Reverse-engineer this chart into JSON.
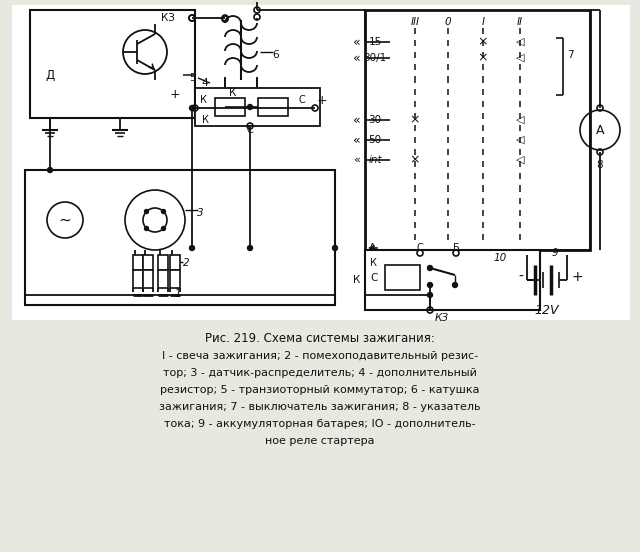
{
  "title_fig": "Рис. 219. Схема системы зажигания:",
  "caption_lines": [
    "I - свеча зажигания; 2 - помехоподавительный резис-",
    "тор; 3 - датчик-распределитель; 4 - дополнительный",
    "резистор; 5 - транзиоторный коммутатор; 6 - катушка",
    "зажигания; 7 - выключатель зажигания; 8 - указатель",
    "тока; 9 - аккумуляторная батарея; IO - дополнитель-",
    "ное реле стартера"
  ],
  "bg_color": "#e8e8e0",
  "line_color": "#111111",
  "voltage_label": "12V"
}
